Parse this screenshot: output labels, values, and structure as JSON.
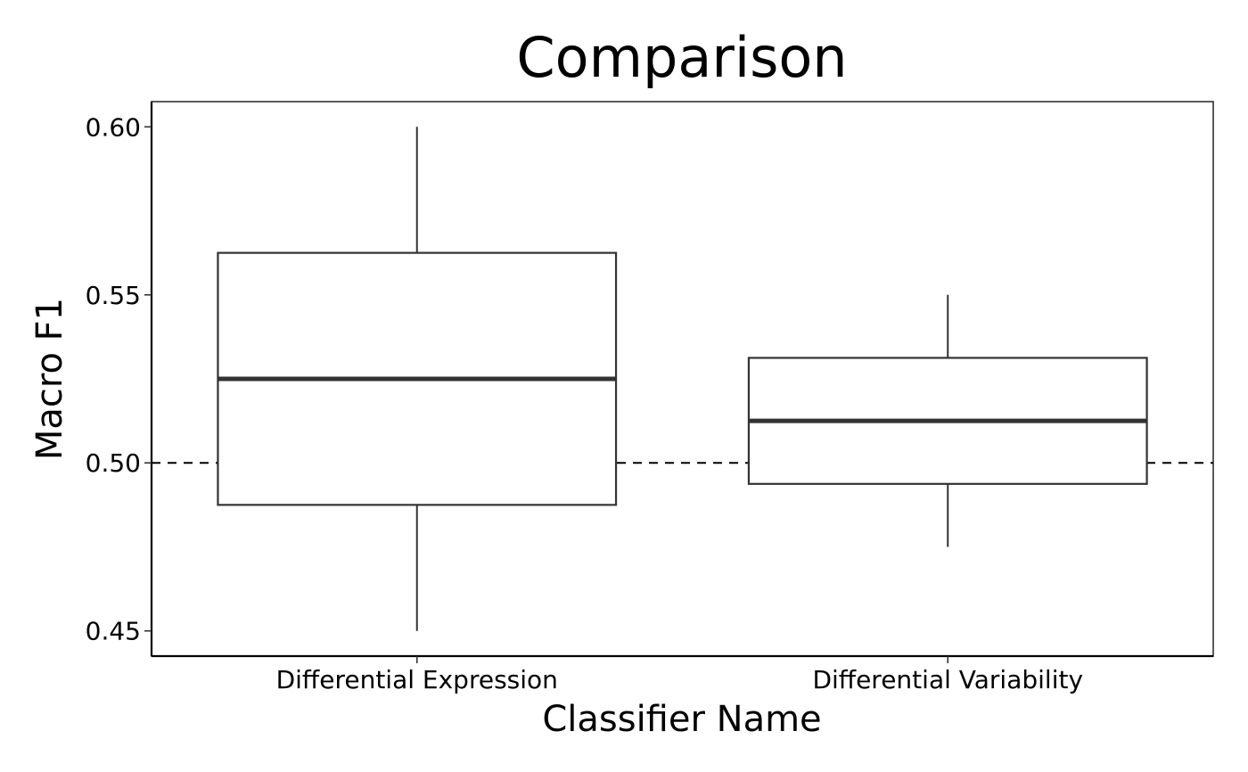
{
  "chart_data": {
    "type": "box",
    "title": "Comparison",
    "xlabel": "Classifier Name",
    "ylabel": "Macro F1",
    "ylim": [
      0.4425,
      0.6075
    ],
    "yticks": [
      "0.45",
      "0.50",
      "0.55",
      "0.60"
    ],
    "ytick_values": [
      0.45,
      0.5,
      0.55,
      0.6
    ],
    "reference_line": 0.5,
    "categories": [
      "Differential Expression",
      "Differential Variability"
    ],
    "boxes": [
      {
        "category": "Differential Expression",
        "min": 0.45,
        "q1": 0.4875,
        "median": 0.525,
        "q3": 0.5625,
        "max": 0.6
      },
      {
        "category": "Differential Variability",
        "min": 0.475,
        "q1": 0.49375,
        "median": 0.5125,
        "q3": 0.53125,
        "max": 0.55
      }
    ],
    "colors": {
      "box_line": "#333333",
      "axis": "#000000",
      "background": "#ffffff"
    }
  }
}
